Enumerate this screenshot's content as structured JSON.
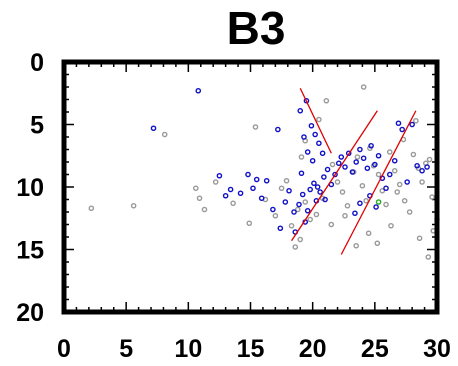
{
  "chart_data": {
    "type": "scatter",
    "title": "B3",
    "xlabel": "",
    "ylabel": "",
    "xlim": [
      0,
      30
    ],
    "ylim": [
      20,
      0
    ],
    "y_axis_inverted": true,
    "grid": false,
    "x_ticks": [
      "0",
      "5",
      "10",
      "15",
      "20",
      "25",
      "30"
    ],
    "y_ticks": [
      "0",
      "5",
      "10",
      "15",
      "20"
    ],
    "colors": {
      "frame": "#000000",
      "gray_points": "#9a9a9a",
      "blue_points": "#1010c8",
      "green_point": "#22aa22",
      "lines": "#e00000"
    },
    "series": [
      {
        "color_key": "gray_points",
        "points": [
          [
            2.2,
            11.7
          ],
          [
            5.6,
            11.5
          ],
          [
            8.1,
            5.8
          ],
          [
            10.6,
            10.1
          ],
          [
            10.9,
            10.9
          ],
          [
            11.3,
            11.8
          ],
          [
            12.2,
            9.6
          ],
          [
            13.6,
            11.3
          ],
          [
            14.9,
            12.9
          ],
          [
            15.4,
            5.2
          ],
          [
            16.2,
            11.0
          ],
          [
            17.0,
            12.3
          ],
          [
            17.5,
            10.1
          ],
          [
            17.9,
            9.5
          ],
          [
            18.3,
            13.1
          ],
          [
            18.6,
            14.8
          ],
          [
            19.0,
            14.2
          ],
          [
            18.8,
            11.8
          ],
          [
            19.4,
            11.2
          ],
          [
            19.8,
            12.6
          ],
          [
            19.1,
            7.6
          ],
          [
            19.4,
            6.3
          ],
          [
            20.5,
            4.6
          ],
          [
            21.1,
            3.1
          ],
          [
            21.6,
            8.2
          ],
          [
            22.0,
            9.6
          ],
          [
            22.4,
            10.4
          ],
          [
            22.8,
            11.5
          ],
          [
            23.3,
            8.8
          ],
          [
            23.6,
            7.6
          ],
          [
            24.0,
            9.9
          ],
          [
            24.3,
            11.1
          ],
          [
            24.5,
            13.7
          ],
          [
            24.9,
            8.3
          ],
          [
            25.3,
            9.0
          ],
          [
            25.6,
            10.3
          ],
          [
            25.9,
            11.4
          ],
          [
            26.2,
            7.2
          ],
          [
            26.6,
            8.7
          ],
          [
            27.0,
            9.8
          ],
          [
            27.4,
            11.1
          ],
          [
            27.8,
            12.0
          ],
          [
            28.1,
            7.4
          ],
          [
            28.5,
            8.5
          ],
          [
            28.8,
            9.6
          ],
          [
            29.1,
            8.1
          ],
          [
            29.4,
            7.8
          ],
          [
            29.7,
            13.5
          ],
          [
            25.2,
            14.5
          ],
          [
            26.3,
            13.1
          ],
          [
            23.5,
            14.7
          ],
          [
            21.5,
            13.0
          ],
          [
            20.3,
            12.2
          ],
          [
            24.6,
            6.9
          ],
          [
            27.3,
            6.2
          ],
          [
            28.3,
            4.7
          ],
          [
            29.6,
            10.8
          ],
          [
            30.0,
            12.6
          ],
          [
            29.3,
            15.6
          ],
          [
            28.6,
            14.1
          ],
          [
            24.1,
            2.0
          ],
          [
            26.8,
            10.4
          ],
          [
            22.6,
            12.3
          ],
          [
            20.8,
            10.9
          ]
        ]
      },
      {
        "color_key": "blue_points",
        "points": [
          [
            7.2,
            5.3
          ],
          [
            10.8,
            2.3
          ],
          [
            12.5,
            9.1
          ],
          [
            13.0,
            10.7
          ],
          [
            13.4,
            10.2
          ],
          [
            14.2,
            10.5
          ],
          [
            14.8,
            9.0
          ],
          [
            15.2,
            10.1
          ],
          [
            15.5,
            9.4
          ],
          [
            15.9,
            10.9
          ],
          [
            16.3,
            9.5
          ],
          [
            17.2,
            5.4
          ],
          [
            17.8,
            11.2
          ],
          [
            18.1,
            10.3
          ],
          [
            18.5,
            12.0
          ],
          [
            18.9,
            11.4
          ],
          [
            19.2,
            10.6
          ],
          [
            19.4,
            12.8
          ],
          [
            19.6,
            11.9
          ],
          [
            19.8,
            10.2
          ],
          [
            20.1,
            9.7
          ],
          [
            20.3,
            11.1
          ],
          [
            20.6,
            10.4
          ],
          [
            20.9,
            9.2
          ],
          [
            21.2,
            8.6
          ],
          [
            21.5,
            9.8
          ],
          [
            21.8,
            9.0
          ],
          [
            22.1,
            8.1
          ],
          [
            22.3,
            7.6
          ],
          [
            22.6,
            8.4
          ],
          [
            22.9,
            7.3
          ],
          [
            23.2,
            8.8
          ],
          [
            23.5,
            8.0
          ],
          [
            23.8,
            7.0
          ],
          [
            24.1,
            7.7
          ],
          [
            24.4,
            8.5
          ],
          [
            24.7,
            6.7
          ],
          [
            25.0,
            8.2
          ],
          [
            25.3,
            7.5
          ],
          [
            25.6,
            9.3
          ],
          [
            25.9,
            10.1
          ],
          [
            26.2,
            9.0
          ],
          [
            26.6,
            7.9
          ],
          [
            26.9,
            4.9
          ],
          [
            27.2,
            5.4
          ],
          [
            27.6,
            9.6
          ],
          [
            28.0,
            5.0
          ],
          [
            28.4,
            8.3
          ],
          [
            28.8,
            8.7
          ],
          [
            29.2,
            8.4
          ],
          [
            19.0,
            3.9
          ],
          [
            19.5,
            3.1
          ],
          [
            19.9,
            5.1
          ],
          [
            20.2,
            5.8
          ],
          [
            20.5,
            6.5
          ],
          [
            20.8,
            7.3
          ],
          [
            19.3,
            6.0
          ],
          [
            19.6,
            7.2
          ],
          [
            20.0,
            7.9
          ],
          [
            23.4,
            12.1
          ],
          [
            23.8,
            11.3
          ],
          [
            24.6,
            10.7
          ],
          [
            25.1,
            11.6
          ],
          [
            18.6,
            13.6
          ],
          [
            17.4,
            13.3
          ],
          [
            16.8,
            11.8
          ],
          [
            19.1,
            8.9
          ],
          [
            20.4,
            10.0
          ],
          [
            21.0,
            11.0
          ]
        ]
      },
      {
        "color_key": "green_point",
        "points": [
          [
            25.3,
            11.2
          ]
        ]
      }
    ],
    "lines": [
      {
        "x": [
          19.0,
          21.5
        ],
        "y": [
          2.1,
          7.3
        ]
      },
      {
        "x": [
          18.3,
          25.2
        ],
        "y": [
          14.3,
          3.9
        ]
      },
      {
        "x": [
          22.3,
          28.3
        ],
        "y": [
          15.4,
          3.9
        ]
      }
    ]
  }
}
